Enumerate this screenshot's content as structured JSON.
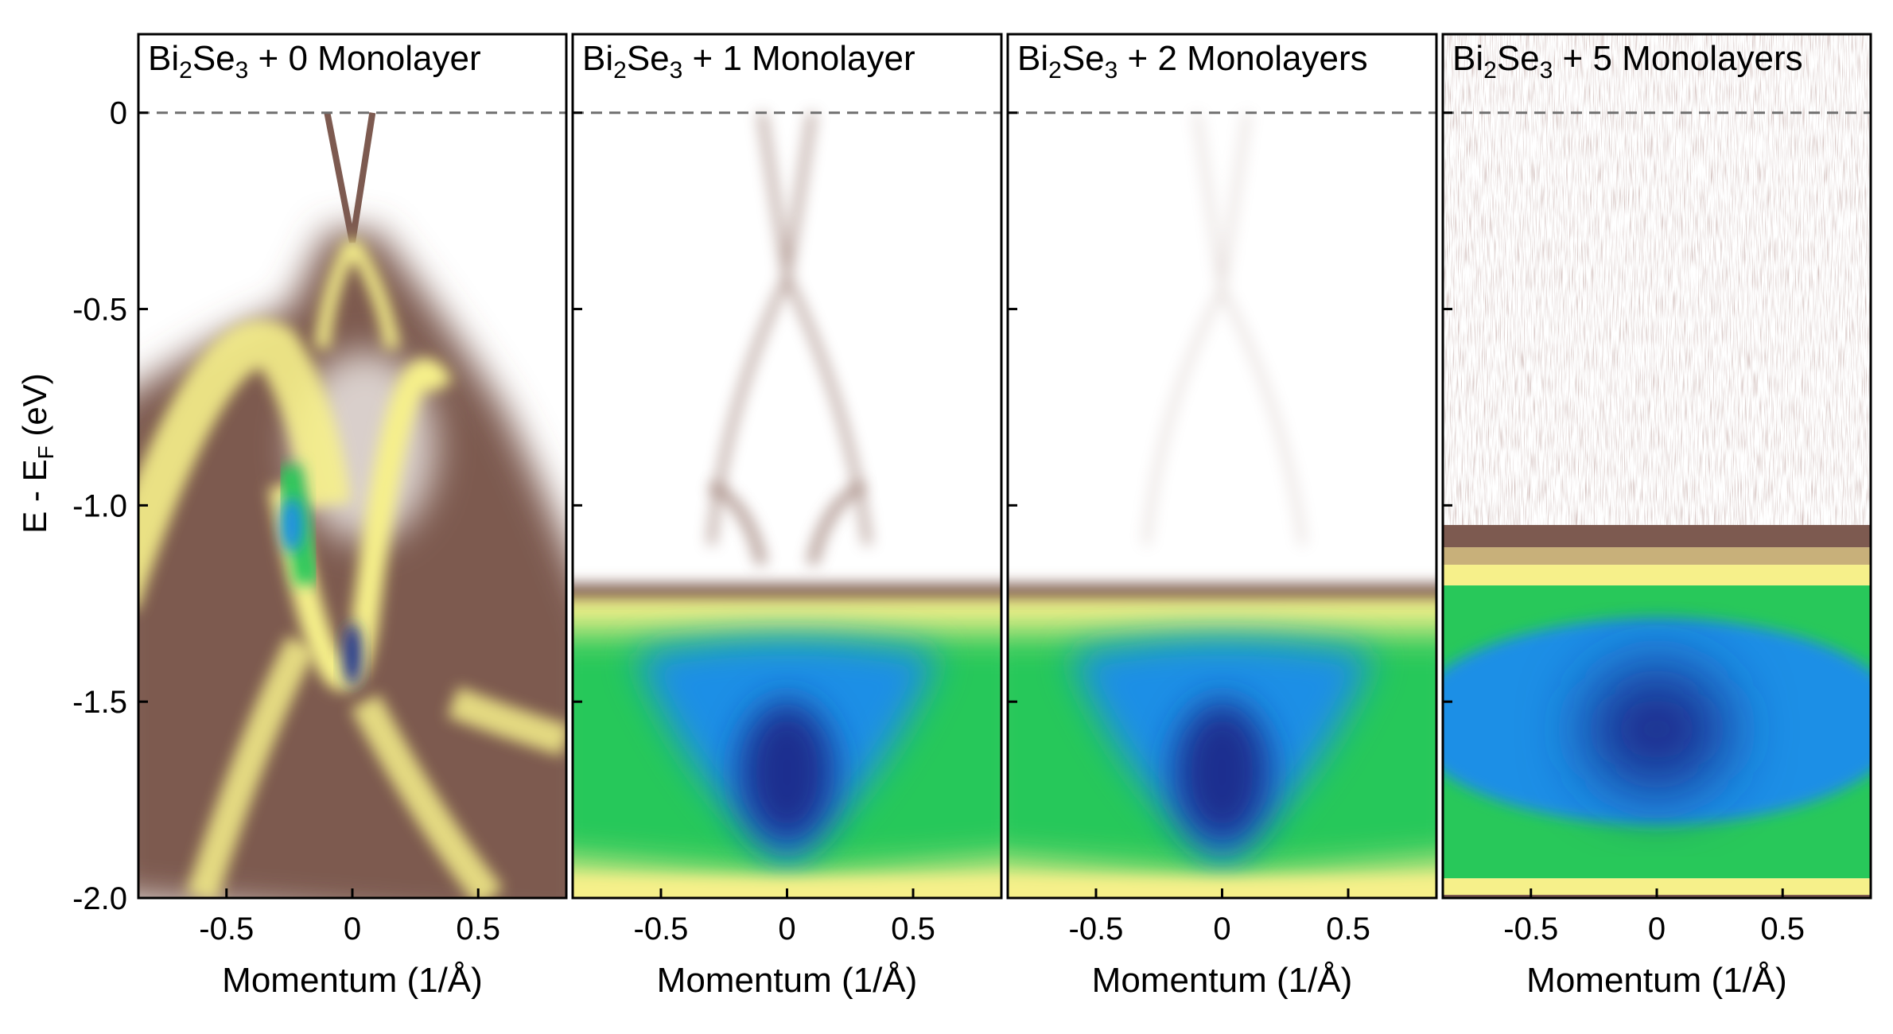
{
  "figure": {
    "ylabel_main": "E - E",
    "ylabel_sub": "F",
    "ylabel_tail": " (eV)"
  },
  "colors": {
    "background": "#ffffff",
    "frame": "#000000",
    "fermi_line": "#6f6f6f",
    "colormap": [
      "#ffffff",
      "#d9cfcb",
      "#a0837a",
      "#7d5a50",
      "#c8b07a",
      "#f6f08a",
      "#28c85a",
      "#1a8fe6",
      "#1f2f8f"
    ]
  },
  "chart_data": [
    {
      "type": "heatmap",
      "title_parts": [
        "Bi",
        "2",
        "Se",
        "3",
        " + 0 Monolayer"
      ],
      "xlabel": "Momentum (1/Å)",
      "ylabel": "E - EF (eV)",
      "xlim": [
        -0.85,
        0.85
      ],
      "ylim": [
        -2.0,
        0.2
      ],
      "xticks": [
        -0.5,
        0,
        0.5
      ],
      "xtick_labels": [
        "-0.5",
        "0",
        "0.5"
      ],
      "yticks": [
        -2.0,
        -1.5,
        -1.0,
        -0.5,
        0
      ],
      "ytick_labels": [
        "-2.0",
        "-1.5",
        "-1.0",
        "-0.5",
        "0"
      ],
      "fermi_level": 0,
      "features": {
        "dirac_point_eV": -0.33,
        "surface_state_fermi_k": [
          -0.1,
          0.08
        ],
        "intensity_maxima": [
          {
            "k": -0.24,
            "E": -1.05
          },
          {
            "k": 0.0,
            "E": -1.38
          }
        ]
      }
    },
    {
      "type": "heatmap",
      "title_parts": [
        "Bi",
        "2",
        "Se",
        "3",
        " + 1 Monolayer"
      ],
      "xlabel": "Momentum (1/Å)",
      "xlim": [
        -0.85,
        0.85
      ],
      "ylim": [
        -2.0,
        0.2
      ],
      "xticks": [
        -0.5,
        0,
        0.5
      ],
      "xtick_labels": [
        "-0.5",
        "0",
        "0.5"
      ],
      "fermi_level": 0,
      "features": {
        "dirac_point_eV": -0.42,
        "band_onset_eV": -1.2,
        "intensity_maximum": {
          "k": 0.0,
          "E": -1.68
        }
      }
    },
    {
      "type": "heatmap",
      "title_parts": [
        "Bi",
        "2",
        "Se",
        "3",
        " + 2 Monolayers"
      ],
      "xlabel": "Momentum (1/Å)",
      "xlim": [
        -0.85,
        0.85
      ],
      "ylim": [
        -2.0,
        0.2
      ],
      "xticks": [
        -0.5,
        0,
        0.5
      ],
      "xtick_labels": [
        "-0.5",
        "0",
        "0.5"
      ],
      "fermi_level": 0,
      "features": {
        "dirac_point_eV": -0.45,
        "band_onset_eV": -1.2,
        "intensity_maximum": {
          "k": 0.0,
          "E": -1.68
        }
      }
    },
    {
      "type": "heatmap",
      "title_parts": [
        "Bi",
        "2",
        "Se",
        "3",
        " + 5 Monolayers"
      ],
      "xlabel": "Momentum (1/Å)",
      "xlim": [
        -0.85,
        0.85
      ],
      "ylim": [
        -2.0,
        0.2
      ],
      "xticks": [
        -0.5,
        0,
        0.5
      ],
      "xtick_labels": [
        "-0.5",
        "0",
        "0.5"
      ],
      "fermi_level": 0,
      "features": {
        "band_onset_eV": -1.05,
        "intensity_maximum": {
          "k": 0.0,
          "E": -1.55
        }
      }
    }
  ]
}
